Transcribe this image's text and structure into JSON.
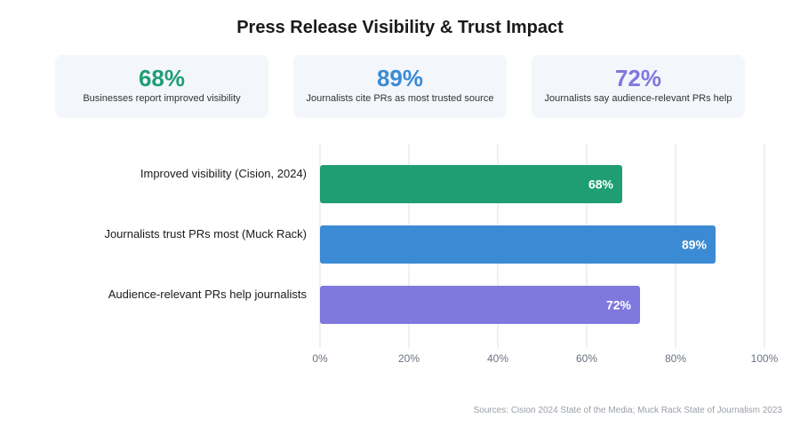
{
  "title": "Press Release Visibility & Trust Impact",
  "cards": [
    {
      "value": "68%",
      "label": "Businesses report improved visibility",
      "color": "#1f9e74"
    },
    {
      "value": "89%",
      "label": "Journalists cite PRs as most trusted source",
      "color": "#3b8bd4"
    },
    {
      "value": "72%",
      "label": "Journalists say audience-relevant PRs help",
      "color": "#7f78dd"
    }
  ],
  "chart_data": {
    "type": "bar",
    "orientation": "horizontal",
    "categories": [
      "Improved visibility (Cision, 2024)",
      "Journalists trust PRs most (Muck Rack)",
      "Audience-relevant PRs help journalists"
    ],
    "values": [
      68,
      89,
      72
    ],
    "value_labels": [
      "68%",
      "89%",
      "72%"
    ],
    "colors": [
      "#1f9e74",
      "#3b8bd4",
      "#7f78dd"
    ],
    "xlim": [
      0,
      100
    ],
    "xticks": [
      0,
      20,
      40,
      60,
      80,
      100
    ],
    "xtick_labels": [
      "0%",
      "20%",
      "40%",
      "60%",
      "80%",
      "100%"
    ],
    "grid": true
  },
  "source": "Sources: Cision 2024 State of the Media; Muck Rack State of Journalism 2023"
}
